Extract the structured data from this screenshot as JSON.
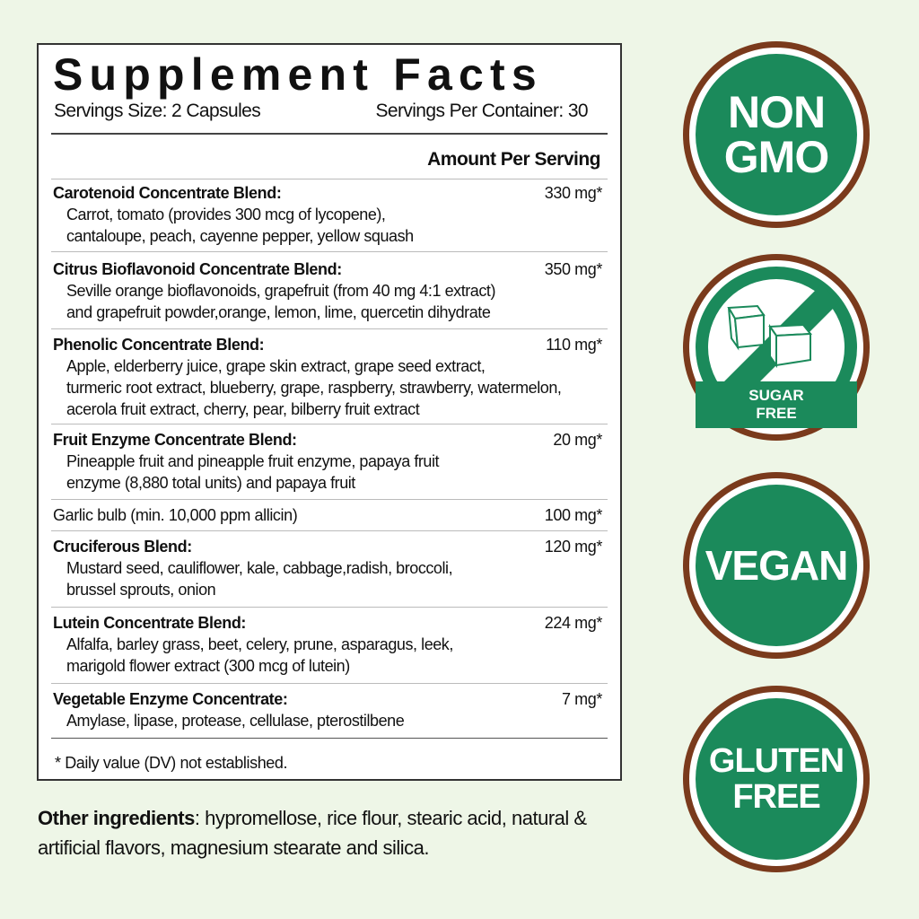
{
  "facts": {
    "title": "Supplement Facts",
    "serving_size": "Servings Size: 2 Capsules",
    "servings_per_container": "Servings Per Container: 30",
    "amount_header": "Amount Per Serving",
    "rows": [
      {
        "name": "Carotenoid Concentrate Blend:",
        "amount": "330 mg*",
        "desc": [
          "Carrot, tomato (provides 300 mcg of lycopene),",
          "cantaloupe, peach, cayenne pepper, yellow squash"
        ]
      },
      {
        "name": "Citrus Bioflavonoid Concentrate Blend:",
        "amount": "350 mg*",
        "desc": [
          "Seville orange bioflavonoids, grapefruit  (from 40 mg 4:1 extract)",
          "and grapefruit powder,orange, lemon, lime, quercetin dihydrate"
        ]
      },
      {
        "name": "Phenolic Concentrate Blend:",
        "amount": "110 mg*",
        "desc": [
          "Apple, elderberry juice, grape skin extract, grape seed extract,",
          "turmeric root extract, blueberry, grape, raspberry, strawberry, watermelon,",
          "acerola fruit extract, cherry, pear, bilberry fruit extract"
        ]
      },
      {
        "name": "Fruit Enzyme Concentrate Blend:",
        "amount": "20 mg*",
        "desc": [
          "Pineapple fruit and pineapple fruit enzyme, papaya fruit",
          "enzyme (8,880 total units) and papaya fruit"
        ]
      },
      {
        "name": "Garlic bulb (min. 10,000 ppm allicin)",
        "amount": "100 mg*",
        "desc": []
      },
      {
        "name": "Cruciferous Blend:",
        "amount": "120 mg*",
        "desc": [
          "Mustard seed, cauliflower, kale, cabbage,radish, broccoli,",
          "brussel sprouts, onion"
        ]
      },
      {
        "name": "Lutein Concentrate Blend:",
        "amount": "224 mg*",
        "desc": [
          "Alfalfa, barley grass, beet, celery, prune, asparagus, leek,",
          "marigold flower extract (300 mcg of lutein)"
        ]
      },
      {
        "name": "Vegetable Enzyme Concentrate:",
        "amount": "7 mg*",
        "desc": [
          " Amylase, lipase, protease, cellulase, pterostilbene"
        ]
      }
    ],
    "footnote": "* Daily value (DV) not established."
  },
  "other_ingredients": {
    "label": "Other ingredients",
    "text": ": hypromellose, rice flour, stearic acid, natural & artificial flavors, magnesium stearate and silica."
  },
  "badges": {
    "non_gmo": [
      "NON",
      "GMO"
    ],
    "sugar_free": [
      "SUGAR",
      "FREE"
    ],
    "vegan": "VEGAN",
    "gluten_free": [
      "GLUTEN",
      "FREE"
    ]
  },
  "colors": {
    "green": "#1b8a5b",
    "brown": "#7a3a1c",
    "background": "#eef6e7"
  }
}
